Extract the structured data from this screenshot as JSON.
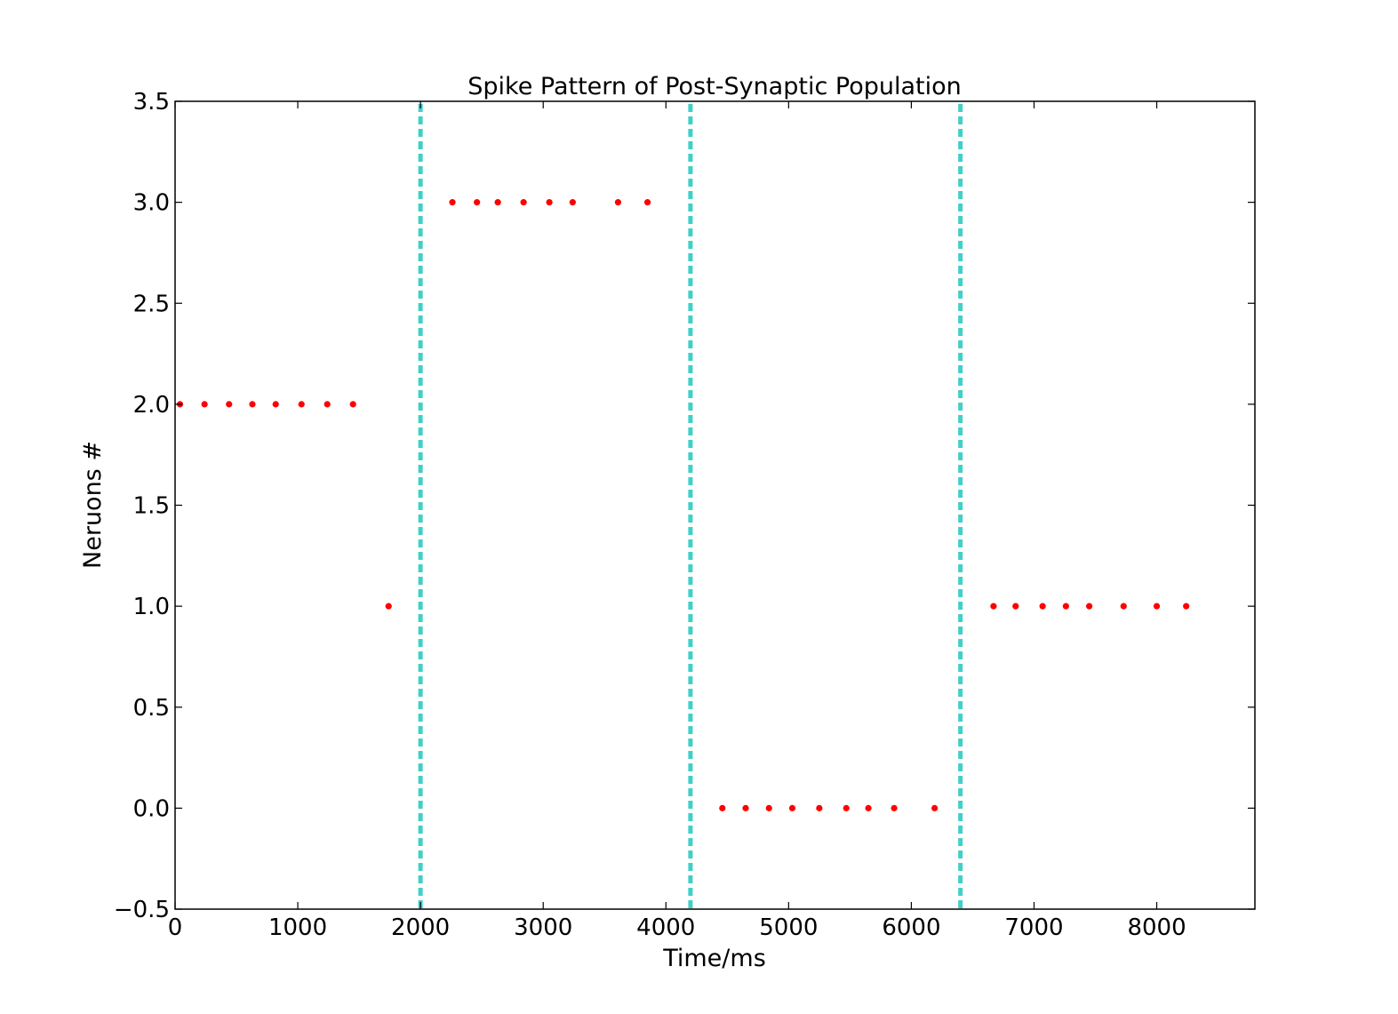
{
  "chart_data": {
    "type": "scatter",
    "title": "Spike Pattern of Post-Synaptic Population",
    "xlabel": "Time/ms",
    "ylabel": "Neruons #",
    "xlim": [
      0,
      8800
    ],
    "ylim": [
      -0.5,
      3.5
    ],
    "xticks": [
      0,
      1000,
      2000,
      3000,
      4000,
      5000,
      6000,
      7000,
      8000
    ],
    "xtick_labels": [
      "0",
      "1000",
      "2000",
      "3000",
      "4000",
      "5000",
      "6000",
      "7000",
      "8000"
    ],
    "yticks": [
      -0.5,
      0.0,
      0.5,
      1.0,
      1.5,
      2.0,
      2.5,
      3.0,
      3.5
    ],
    "ytick_labels": [
      "−0.5",
      "0.0",
      "0.5",
      "1.0",
      "1.5",
      "2.0",
      "2.5",
      "3.0",
      "3.5"
    ],
    "grid": false,
    "legend": "none",
    "series": [
      {
        "color": "#ff0000",
        "marker": "dot",
        "points": [
          [
            40,
            2
          ],
          [
            240,
            2
          ],
          [
            440,
            2
          ],
          [
            630,
            2
          ],
          [
            820,
            2
          ],
          [
            1030,
            2
          ],
          [
            1240,
            2
          ],
          [
            1450,
            2
          ],
          [
            1740,
            1
          ],
          [
            2260,
            3
          ],
          [
            2460,
            3
          ],
          [
            2630,
            3
          ],
          [
            2840,
            3
          ],
          [
            3050,
            3
          ],
          [
            3240,
            3
          ],
          [
            3610,
            3
          ],
          [
            3850,
            3
          ],
          [
            4460,
            0
          ],
          [
            4650,
            0
          ],
          [
            4840,
            0
          ],
          [
            5030,
            0
          ],
          [
            5250,
            0
          ],
          [
            5470,
            0
          ],
          [
            5650,
            0
          ],
          [
            5860,
            0
          ],
          [
            6190,
            0
          ],
          [
            6670,
            1
          ],
          [
            6850,
            1
          ],
          [
            7070,
            1
          ],
          [
            7260,
            1
          ],
          [
            7450,
            1
          ],
          [
            7730,
            1
          ],
          [
            8000,
            1
          ],
          [
            8240,
            1
          ]
        ]
      }
    ],
    "vlines": [
      {
        "x": 2000,
        "color": "#40d0c8",
        "style": "dashed"
      },
      {
        "x": 4200,
        "color": "#40d0c8",
        "style": "dashed"
      },
      {
        "x": 6400,
        "color": "#40d0c8",
        "style": "dashed"
      }
    ]
  }
}
